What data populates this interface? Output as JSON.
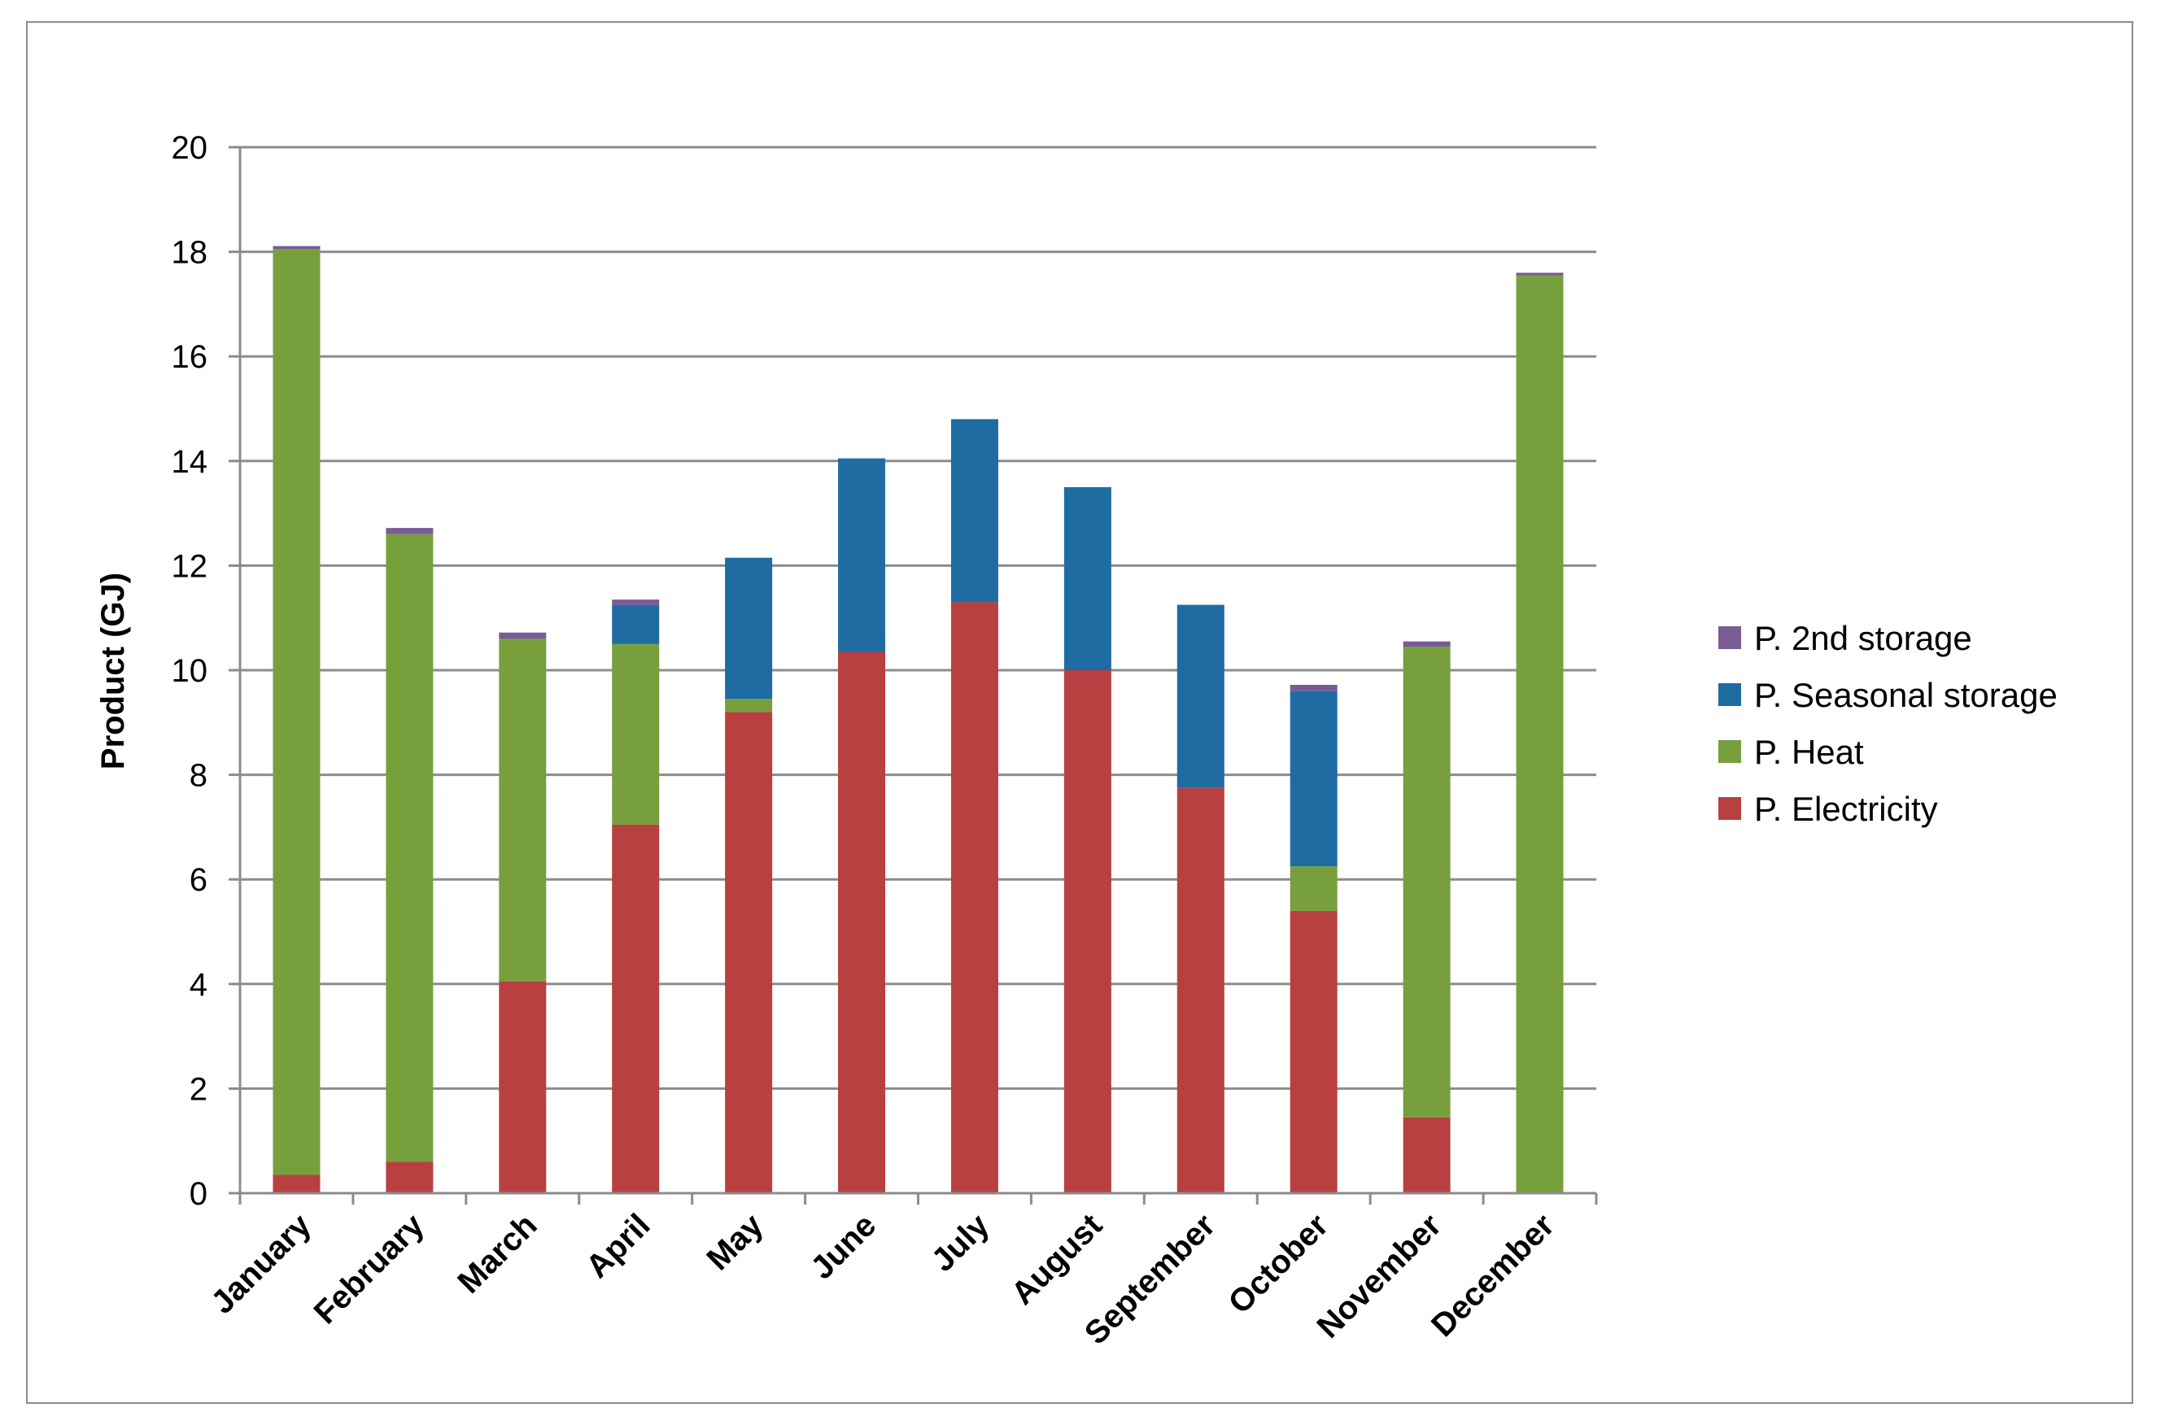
{
  "chart_data": {
    "type": "bar",
    "stacked": true,
    "title": "",
    "xlabel": "",
    "ylabel": "Product (GJ)",
    "ylim": [
      0,
      20
    ],
    "yticks": [
      0,
      2,
      4,
      6,
      8,
      10,
      12,
      14,
      16,
      18,
      20
    ],
    "grid": true,
    "legend_position": "right",
    "categories": [
      "January",
      "February",
      "March",
      "April",
      "May",
      "June",
      "July",
      "August",
      "September",
      "October",
      "November",
      "December"
    ],
    "series": [
      {
        "name": "P. Electricity",
        "color": "#b94040",
        "values": [
          0.35,
          0.6,
          4.05,
          7.05,
          9.2,
          10.35,
          11.3,
          10.0,
          7.75,
          5.4,
          1.45,
          0.0
        ]
      },
      {
        "name": "P. Heat",
        "color": "#77a03c",
        "values": [
          17.7,
          12.0,
          6.55,
          3.45,
          0.25,
          0.0,
          0.0,
          0.0,
          0.0,
          0.85,
          9.0,
          17.55
        ]
      },
      {
        "name": "P. Seasonal storage",
        "color": "#1f6ca3",
        "values": [
          0.0,
          0.0,
          0.0,
          0.75,
          2.7,
          3.7,
          3.5,
          3.5,
          3.5,
          3.35,
          0.0,
          0.0
        ]
      },
      {
        "name": "P. 2nd storage",
        "color": "#7a5b94",
        "values": [
          0.06,
          0.12,
          0.12,
          0.1,
          0.0,
          0.0,
          0.0,
          0.0,
          0.0,
          0.12,
          0.1,
          0.05
        ]
      }
    ]
  }
}
